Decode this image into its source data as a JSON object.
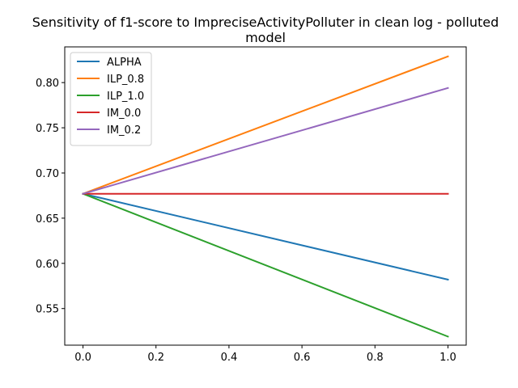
{
  "chart_data": {
    "type": "line",
    "title_lines": [
      "Sensitivity of f1-score to ImpreciseActivityPolluter in clean log - polluted",
      "model"
    ],
    "xlabel": "",
    "ylabel": "",
    "xlim": [
      -0.05,
      1.05
    ],
    "ylim": [
      0.5095,
      0.8395
    ],
    "xticks": [
      0.0,
      0.2,
      0.4,
      0.6,
      0.8,
      1.0
    ],
    "xtick_labels": [
      "0.0",
      "0.2",
      "0.4",
      "0.6",
      "0.8",
      "1.0"
    ],
    "yticks": [
      0.55,
      0.6,
      0.65,
      0.7,
      0.75,
      0.8
    ],
    "ytick_labels": [
      "0.55",
      "0.60",
      "0.65",
      "0.70",
      "0.75",
      "0.80"
    ],
    "grid": false,
    "legend_position": "upper-left",
    "series": [
      {
        "name": "ALPHA",
        "color": "#1f77b4",
        "x": [
          0.0,
          1.0
        ],
        "y": [
          0.677,
          0.582
        ]
      },
      {
        "name": "ILP_0.8",
        "color": "#ff7f0e",
        "x": [
          0.0,
          1.0
        ],
        "y": [
          0.677,
          0.829
        ]
      },
      {
        "name": "ILP_1.0",
        "color": "#2ca02c",
        "x": [
          0.0,
          1.0
        ],
        "y": [
          0.677,
          0.519
        ]
      },
      {
        "name": "IM_0.0",
        "color": "#d62728",
        "x": [
          0.0,
          1.0
        ],
        "y": [
          0.677,
          0.677
        ]
      },
      {
        "name": "IM_0.2",
        "color": "#9467bd",
        "x": [
          0.0,
          1.0
        ],
        "y": [
          0.677,
          0.794
        ]
      }
    ]
  }
}
